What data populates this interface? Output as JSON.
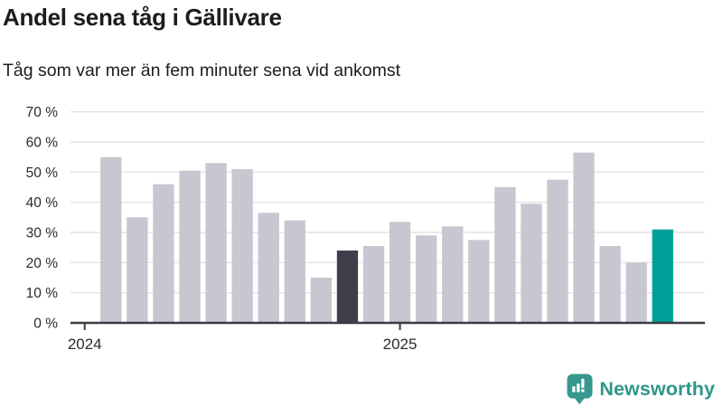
{
  "header": {
    "title": "Andel sena tåg i Gällivare",
    "subtitle": "Tåg som var mer än fem minuter sena vid ankomst"
  },
  "chart_data": {
    "type": "bar",
    "title": "Andel sena tåg i Gällivare",
    "subtitle": "Tåg som var mer än fem minuter sena vid ankomst",
    "unit": "%",
    "categories": [
      "2024-02",
      "2024-03",
      "2024-04",
      "2024-05",
      "2024-06",
      "2024-07",
      "2024-08",
      "2024-09",
      "2024-10",
      "2024-11",
      "2024-12",
      "2025-01",
      "2025-02",
      "2025-03",
      "2025-04",
      "2025-05",
      "2025-06",
      "2025-07",
      "2025-08",
      "2025-09",
      "2025-10",
      "2025-11"
    ],
    "series": [
      {
        "name": "Andel sena tåg",
        "values": [
          55,
          35,
          46,
          50.5,
          53,
          51,
          36.5,
          34,
          15,
          24,
          25.5,
          33.5,
          29,
          32,
          27.5,
          45,
          39.5,
          47.5,
          56.5,
          25.5,
          20,
          31
        ]
      }
    ],
    "highlight_dark": "2024-11",
    "highlight_accent": "2025-11",
    "xlabel": "",
    "ylabel": "",
    "ylim": [
      0,
      70
    ],
    "grid": true,
    "legend": "none",
    "yticks": [
      {
        "value": 0,
        "label": "0 %"
      },
      {
        "value": 10,
        "label": "10 %"
      },
      {
        "value": 20,
        "label": "20 %"
      },
      {
        "value": 30,
        "label": "30 %"
      },
      {
        "value": 40,
        "label": "40 %"
      },
      {
        "value": 50,
        "label": "50 %"
      },
      {
        "value": 60,
        "label": "60 %"
      },
      {
        "value": 70,
        "label": "70 %"
      }
    ],
    "xticks": [
      {
        "label": "2024",
        "slot": -1
      },
      {
        "label": "2025",
        "slot": 11
      }
    ],
    "colors": {
      "bar_default": "#c8c6d0",
      "bar_dark": "#3e3e4c",
      "bar_accent": "#00a099",
      "grid": "#e4e3e6",
      "axis": "#3b3b43",
      "text": "#1d1d1f"
    }
  },
  "footer": {
    "brand": "Newsworthy",
    "brand_color": "#2e968b"
  }
}
